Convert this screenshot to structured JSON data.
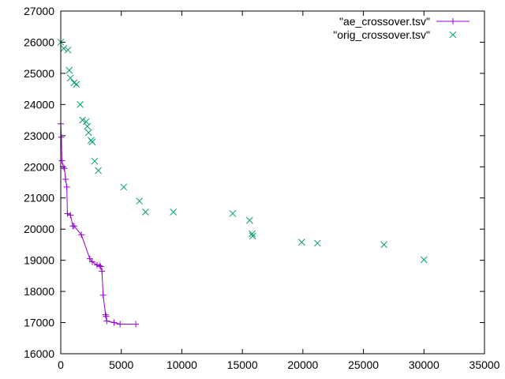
{
  "chart_data": {
    "type": "scatter",
    "title": "",
    "xlabel": "",
    "ylabel": "",
    "xlim": [
      0,
      35000
    ],
    "ylim": [
      16000,
      27000
    ],
    "x_ticks": [
      0,
      5000,
      10000,
      15000,
      20000,
      25000,
      30000,
      35000
    ],
    "y_ticks": [
      16000,
      17000,
      18000,
      19000,
      20000,
      21000,
      22000,
      23000,
      24000,
      25000,
      26000,
      27000
    ],
    "x_tick_labels": [
      "0",
      "5000",
      "10000",
      "15000",
      "20000",
      "25000",
      "30000",
      "35000"
    ],
    "y_tick_labels": [
      "16000",
      "17000",
      "18000",
      "19000",
      "20000",
      "21000",
      "22000",
      "23000",
      "24000",
      "25000",
      "26000",
      "27000"
    ],
    "grid": false,
    "legend_position": "top-right",
    "series": [
      {
        "name": "\"ae_crossover.tsv\"",
        "style": "linespoints",
        "marker": "plus",
        "color": "#9400d3",
        "points": [
          [
            0,
            23380
          ],
          [
            50,
            22950
          ],
          [
            100,
            22200
          ],
          [
            200,
            22000
          ],
          [
            300,
            21950
          ],
          [
            400,
            21600
          ],
          [
            500,
            21350
          ],
          [
            550,
            20500
          ],
          [
            800,
            20450
          ],
          [
            1000,
            20100
          ],
          [
            1100,
            20100
          ],
          [
            1700,
            19820
          ],
          [
            2400,
            19050
          ],
          [
            2600,
            18950
          ],
          [
            3000,
            18850
          ],
          [
            3200,
            18830
          ],
          [
            3300,
            18800
          ],
          [
            3400,
            18650
          ],
          [
            3500,
            17880
          ],
          [
            3700,
            17250
          ],
          [
            3750,
            17200
          ],
          [
            3800,
            17050
          ],
          [
            4400,
            17000
          ],
          [
            4900,
            16950
          ],
          [
            6200,
            16950
          ]
        ]
      },
      {
        "name": "\"orig_crossover.tsv\"",
        "style": "points",
        "marker": "cross",
        "color": "#009e73",
        "points": [
          [
            0,
            26000
          ],
          [
            250,
            25800
          ],
          [
            600,
            25750
          ],
          [
            700,
            25100
          ],
          [
            800,
            24850
          ],
          [
            1100,
            24700
          ],
          [
            1300,
            24650
          ],
          [
            1600,
            24000
          ],
          [
            1800,
            23500
          ],
          [
            2100,
            23450
          ],
          [
            2200,
            23300
          ],
          [
            2300,
            23100
          ],
          [
            2500,
            22850
          ],
          [
            2600,
            22800
          ],
          [
            2800,
            22180
          ],
          [
            3100,
            21880
          ],
          [
            5200,
            21350
          ],
          [
            6500,
            20900
          ],
          [
            7000,
            20550
          ],
          [
            9300,
            20550
          ],
          [
            14200,
            20500
          ],
          [
            15600,
            20280
          ],
          [
            15800,
            19850
          ],
          [
            15850,
            19780
          ],
          [
            19900,
            19580
          ],
          [
            21200,
            19550
          ],
          [
            26700,
            19500
          ],
          [
            30000,
            19020
          ]
        ]
      }
    ]
  }
}
